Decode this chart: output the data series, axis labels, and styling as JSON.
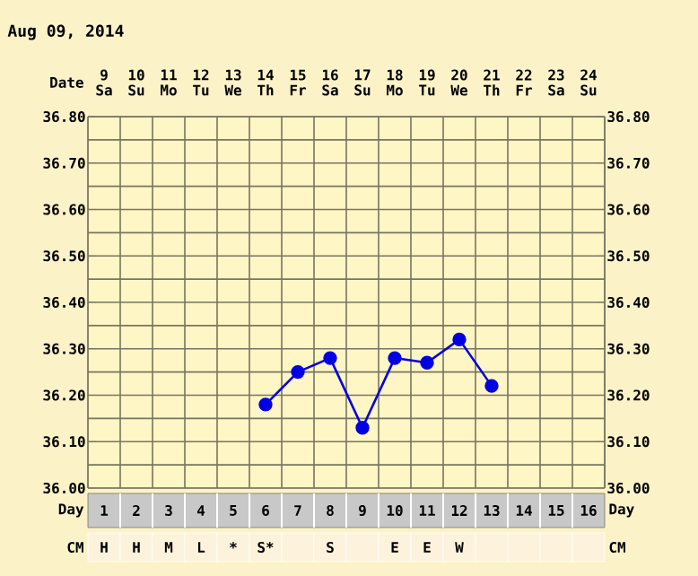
{
  "chart_data": {
    "type": "line",
    "title": "Aug 09, 2014",
    "xlabel": "Day",
    "x2label": "Date",
    "categories": [
      "1",
      "2",
      "3",
      "4",
      "5",
      "6",
      "7",
      "8",
      "9",
      "10",
      "11",
      "12",
      "13",
      "14",
      "15",
      "16"
    ],
    "x2lim": [
      8.5,
      24.5
    ],
    "x2ticks": [
      9,
      10,
      11,
      12,
      13,
      14,
      15,
      16,
      17,
      18,
      19,
      20,
      21,
      22,
      23,
      24
    ],
    "series": [
      {
        "color": "#0000e0",
        "values": [
          null,
          null,
          null,
          null,
          null,
          36.18,
          36.25,
          36.28,
          36.13,
          36.28,
          36.27,
          36.32,
          36.22,
          null,
          null,
          null
        ]
      }
    ],
    "ylim": [
      36.0,
      36.8
    ],
    "yticks": [
      {
        "value": 36.0,
        "label": "36.00"
      },
      {
        "value": 36.1,
        "label": "36.10"
      },
      {
        "value": 36.2,
        "label": "36.20"
      },
      {
        "value": 36.3,
        "label": "36.30"
      },
      {
        "value": 36.4,
        "label": "36.40"
      },
      {
        "value": 36.5,
        "label": "36.50"
      },
      {
        "value": 36.6,
        "label": "36.60"
      },
      {
        "value": 36.7,
        "label": "36.70"
      },
      {
        "value": 36.8,
        "label": "36.80"
      }
    ],
    "y2lim": [
      36.0,
      36.8
    ],
    "y2ticks": [
      {
        "value": 36.0,
        "label": "36.00"
      },
      {
        "value": 36.1,
        "label": "36.10"
      },
      {
        "value": 36.2,
        "label": "36.20"
      },
      {
        "value": 36.3,
        "label": "36.30"
      },
      {
        "value": 36.4,
        "label": "36.40"
      },
      {
        "value": 36.5,
        "label": "36.50"
      },
      {
        "value": 36.6,
        "label": "36.60"
      },
      {
        "value": 36.7,
        "label": "36.70"
      },
      {
        "value": 36.8,
        "label": "36.80"
      }
    ],
    "grid": true,
    "marker": "circle",
    "line_style": "solid",
    "annotations": [
      "Sa",
      "Su",
      "Mo",
      "Tu",
      "We",
      "Th",
      "Fr",
      "Sa",
      "Su",
      "Mo",
      "Tu",
      "We",
      "Th",
      "Fr",
      "Sa",
      "Su",
      "CM",
      "H",
      "H",
      "M",
      "L",
      "*",
      "S*",
      null,
      "S",
      null,
      "E",
      "E",
      "W",
      null,
      null,
      null,
      null
    ]
  }
}
